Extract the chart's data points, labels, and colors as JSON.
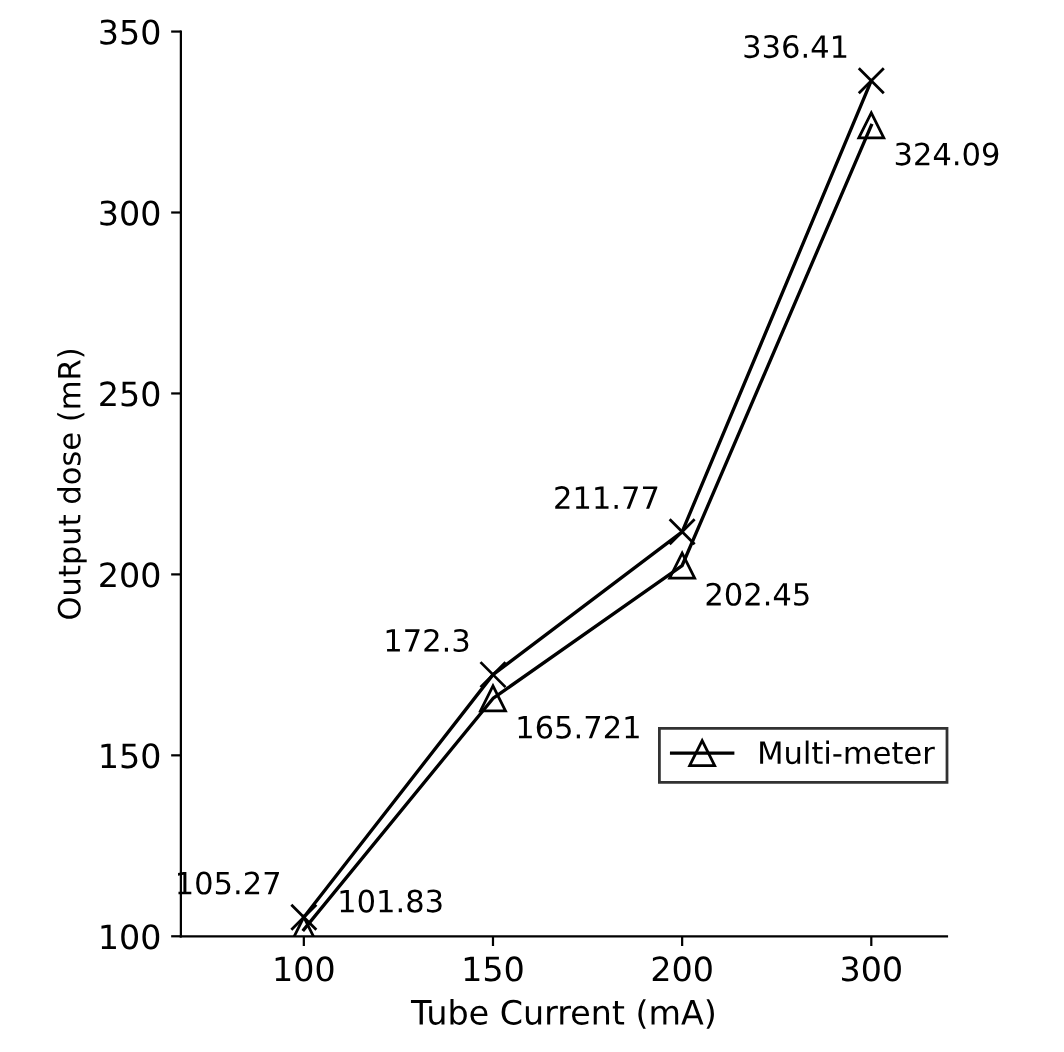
{
  "chart_data": {
    "type": "line",
    "xlabel": "Tube Current (mA)",
    "ylabel": "Output dose (mR)",
    "categories": [
      "100",
      "150",
      "200",
      "300"
    ],
    "series": [
      {
        "color": "#000000",
        "marker": "cross",
        "values": [
          105.27,
          172.3,
          211.77,
          336.41
        ]
      },
      {
        "name": "Multi-meter",
        "color": "#000000",
        "marker": "triangle",
        "values": [
          101.83,
          165.721,
          202.45,
          324.09
        ]
      }
    ],
    "ylim": [
      100,
      350
    ],
    "yticks": [
      100,
      150,
      200,
      250,
      300,
      350
    ],
    "data_labels": true,
    "legend": "right",
    "grid": false
  }
}
